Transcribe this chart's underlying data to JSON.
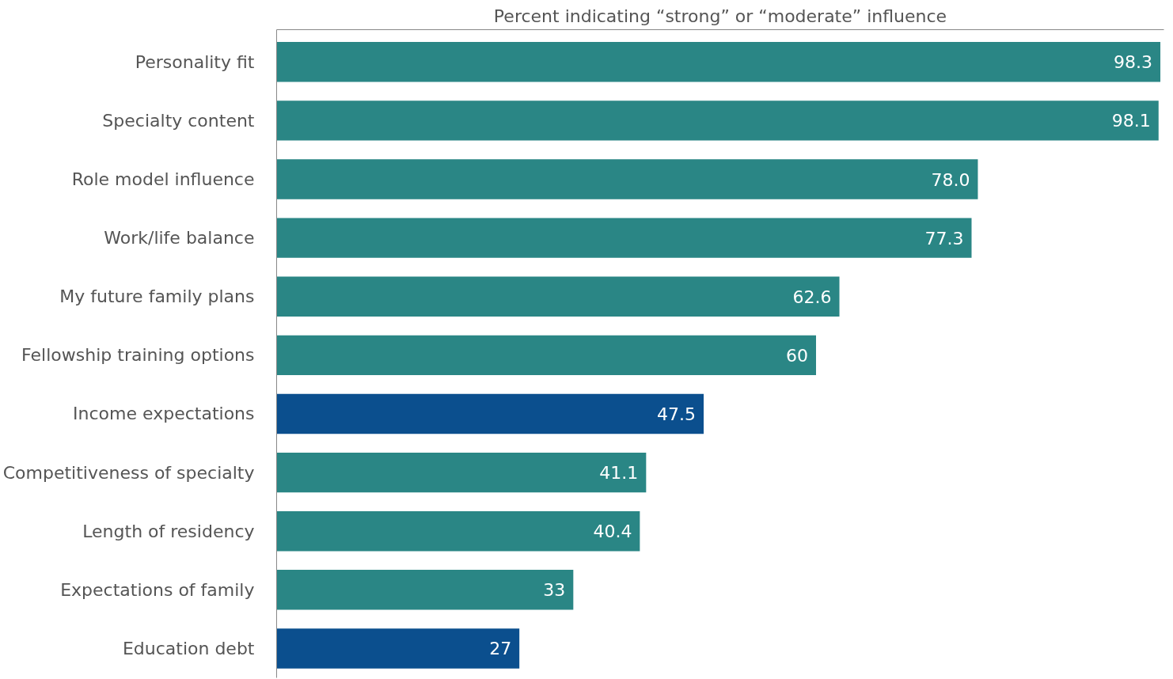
{
  "chart_data": {
    "type": "bar",
    "orientation": "horizontal",
    "title": "Percent indicating “strong” or “moderate” influence",
    "categories": [
      "Personality fit",
      "Specialty content",
      "Role model influence",
      "Work/life balance",
      "My future family plans",
      "Fellowship training options",
      "Income expectations",
      "Competitiveness of specialty",
      "Length of residency",
      "Expectations of family",
      "Education debt"
    ],
    "values": [
      98.3,
      98.1,
      78.0,
      77.3,
      62.6,
      60,
      47.5,
      41.1,
      40.4,
      33,
      27
    ],
    "colors": [
      "#2a8685",
      "#2a8685",
      "#2a8685",
      "#2a8685",
      "#2a8685",
      "#2a8685",
      "#0b4f8e",
      "#2a8685",
      "#2a8685",
      "#2a8685",
      "#0b4f8e"
    ],
    "value_labels": [
      "98.3",
      "98.1",
      "78.0",
      "77.3",
      "62.6",
      "60",
      "47.5",
      "41.1",
      "40.4",
      "33",
      "27"
    ],
    "relative": false,
    "tick_labels": "y",
    "grid": false
  }
}
